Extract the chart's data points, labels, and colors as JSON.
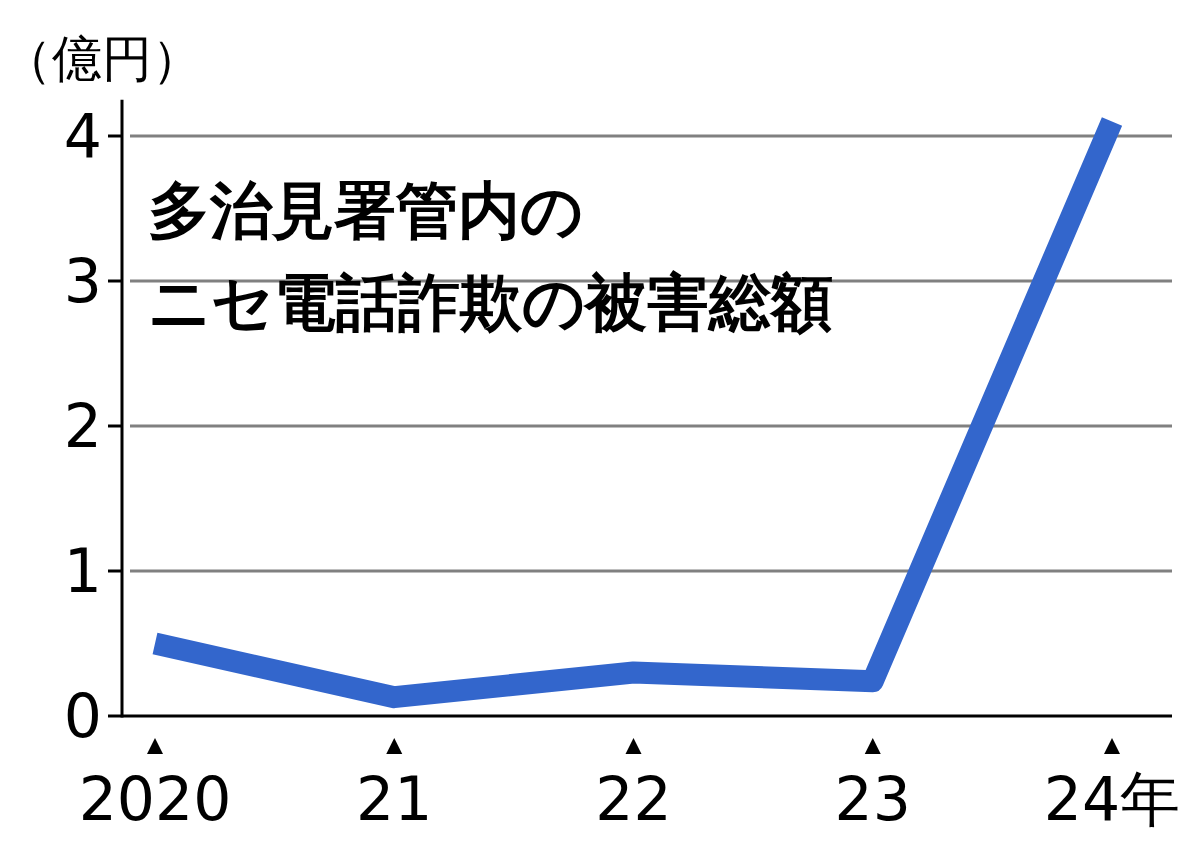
{
  "chart_data": {
    "type": "line",
    "title": "多治見署管内の",
    "subtitle": "ニセ電話詐欺の被害総額",
    "ylabel": "（億円）",
    "categories": [
      "2020",
      "21",
      "22",
      "23",
      "24年"
    ],
    "values": [
      0.5,
      0.13,
      0.3,
      0.24,
      4.1
    ],
    "color": "#3366cc",
    "ylim": [
      0,
      4.25
    ],
    "yticks": [
      0,
      1,
      2,
      3,
      4
    ],
    "grid": "y",
    "marker": "none",
    "line_style": "solid"
  }
}
